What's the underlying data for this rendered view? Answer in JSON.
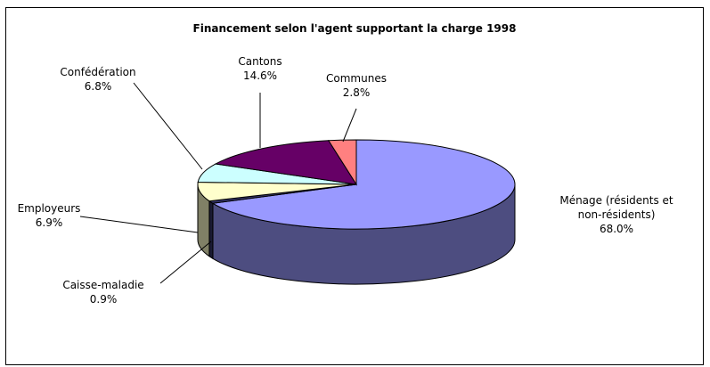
{
  "chart_data": {
    "type": "pie",
    "title": "Financement selon l'agent supportant la charge 1998",
    "slices": [
      {
        "label": "Ménage (résidents et non-résidents)",
        "label_lines": [
          "Ménage (résidents et",
          "non-résidents)"
        ],
        "value": 68.0,
        "value_text": "68.0%",
        "color": "#9999FF"
      },
      {
        "label": "Caisse-maladie",
        "label_lines": [
          "Caisse-maladie"
        ],
        "value": 0.9,
        "value_text": "0.9%",
        "color": "#333366"
      },
      {
        "label": "Employeurs",
        "label_lines": [
          "Employeurs"
        ],
        "value": 6.9,
        "value_text": "6.9%",
        "color": "#FFFFCC"
      },
      {
        "label": "Confédération",
        "label_lines": [
          "Confédération"
        ],
        "value": 6.8,
        "value_text": "6.8%",
        "color": "#CCFFFF"
      },
      {
        "label": "Cantons",
        "label_lines": [
          "Cantons"
        ],
        "value": 14.6,
        "value_text": "14.6%",
        "color": "#660066"
      },
      {
        "label": "Communes",
        "label_lines": [
          "Communes"
        ],
        "value": 2.8,
        "value_text": "2.8%",
        "color": "#FF8080"
      }
    ],
    "legend": "none",
    "style": "3d-pie"
  }
}
